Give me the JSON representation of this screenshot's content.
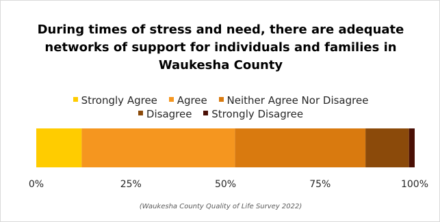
{
  "chart_data": {
    "type": "bar",
    "orientation": "horizontal",
    "stacked": true,
    "title": "During times of stress and need, there are adequate networks of support for individuals and families in Waukesha County",
    "legend_position": "top",
    "series": [
      {
        "name": "Strongly Agree",
        "values": [
          12
        ],
        "color": "#FFCC00"
      },
      {
        "name": "Agree",
        "values": [
          40.5
        ],
        "color": "#F5961F"
      },
      {
        "name": "Neither Agree Nor Disagree",
        "values": [
          34.5
        ],
        "color": "#D97A0F"
      },
      {
        "name": "Disagree",
        "values": [
          11.5
        ],
        "color": "#8B4A0A"
      },
      {
        "name": "Strongly Disagree",
        "values": [
          1.5
        ],
        "color": "#4A0F05"
      }
    ],
    "xlim": [
      0,
      100
    ],
    "x_ticks": [
      "0%",
      "25%",
      "50%",
      "75%",
      "100%"
    ],
    "x_tick_values": [
      0,
      25,
      50,
      75,
      100
    ],
    "grid": false
  },
  "source_note": "(Waukesha County Quality of Life Survey 2022)"
}
